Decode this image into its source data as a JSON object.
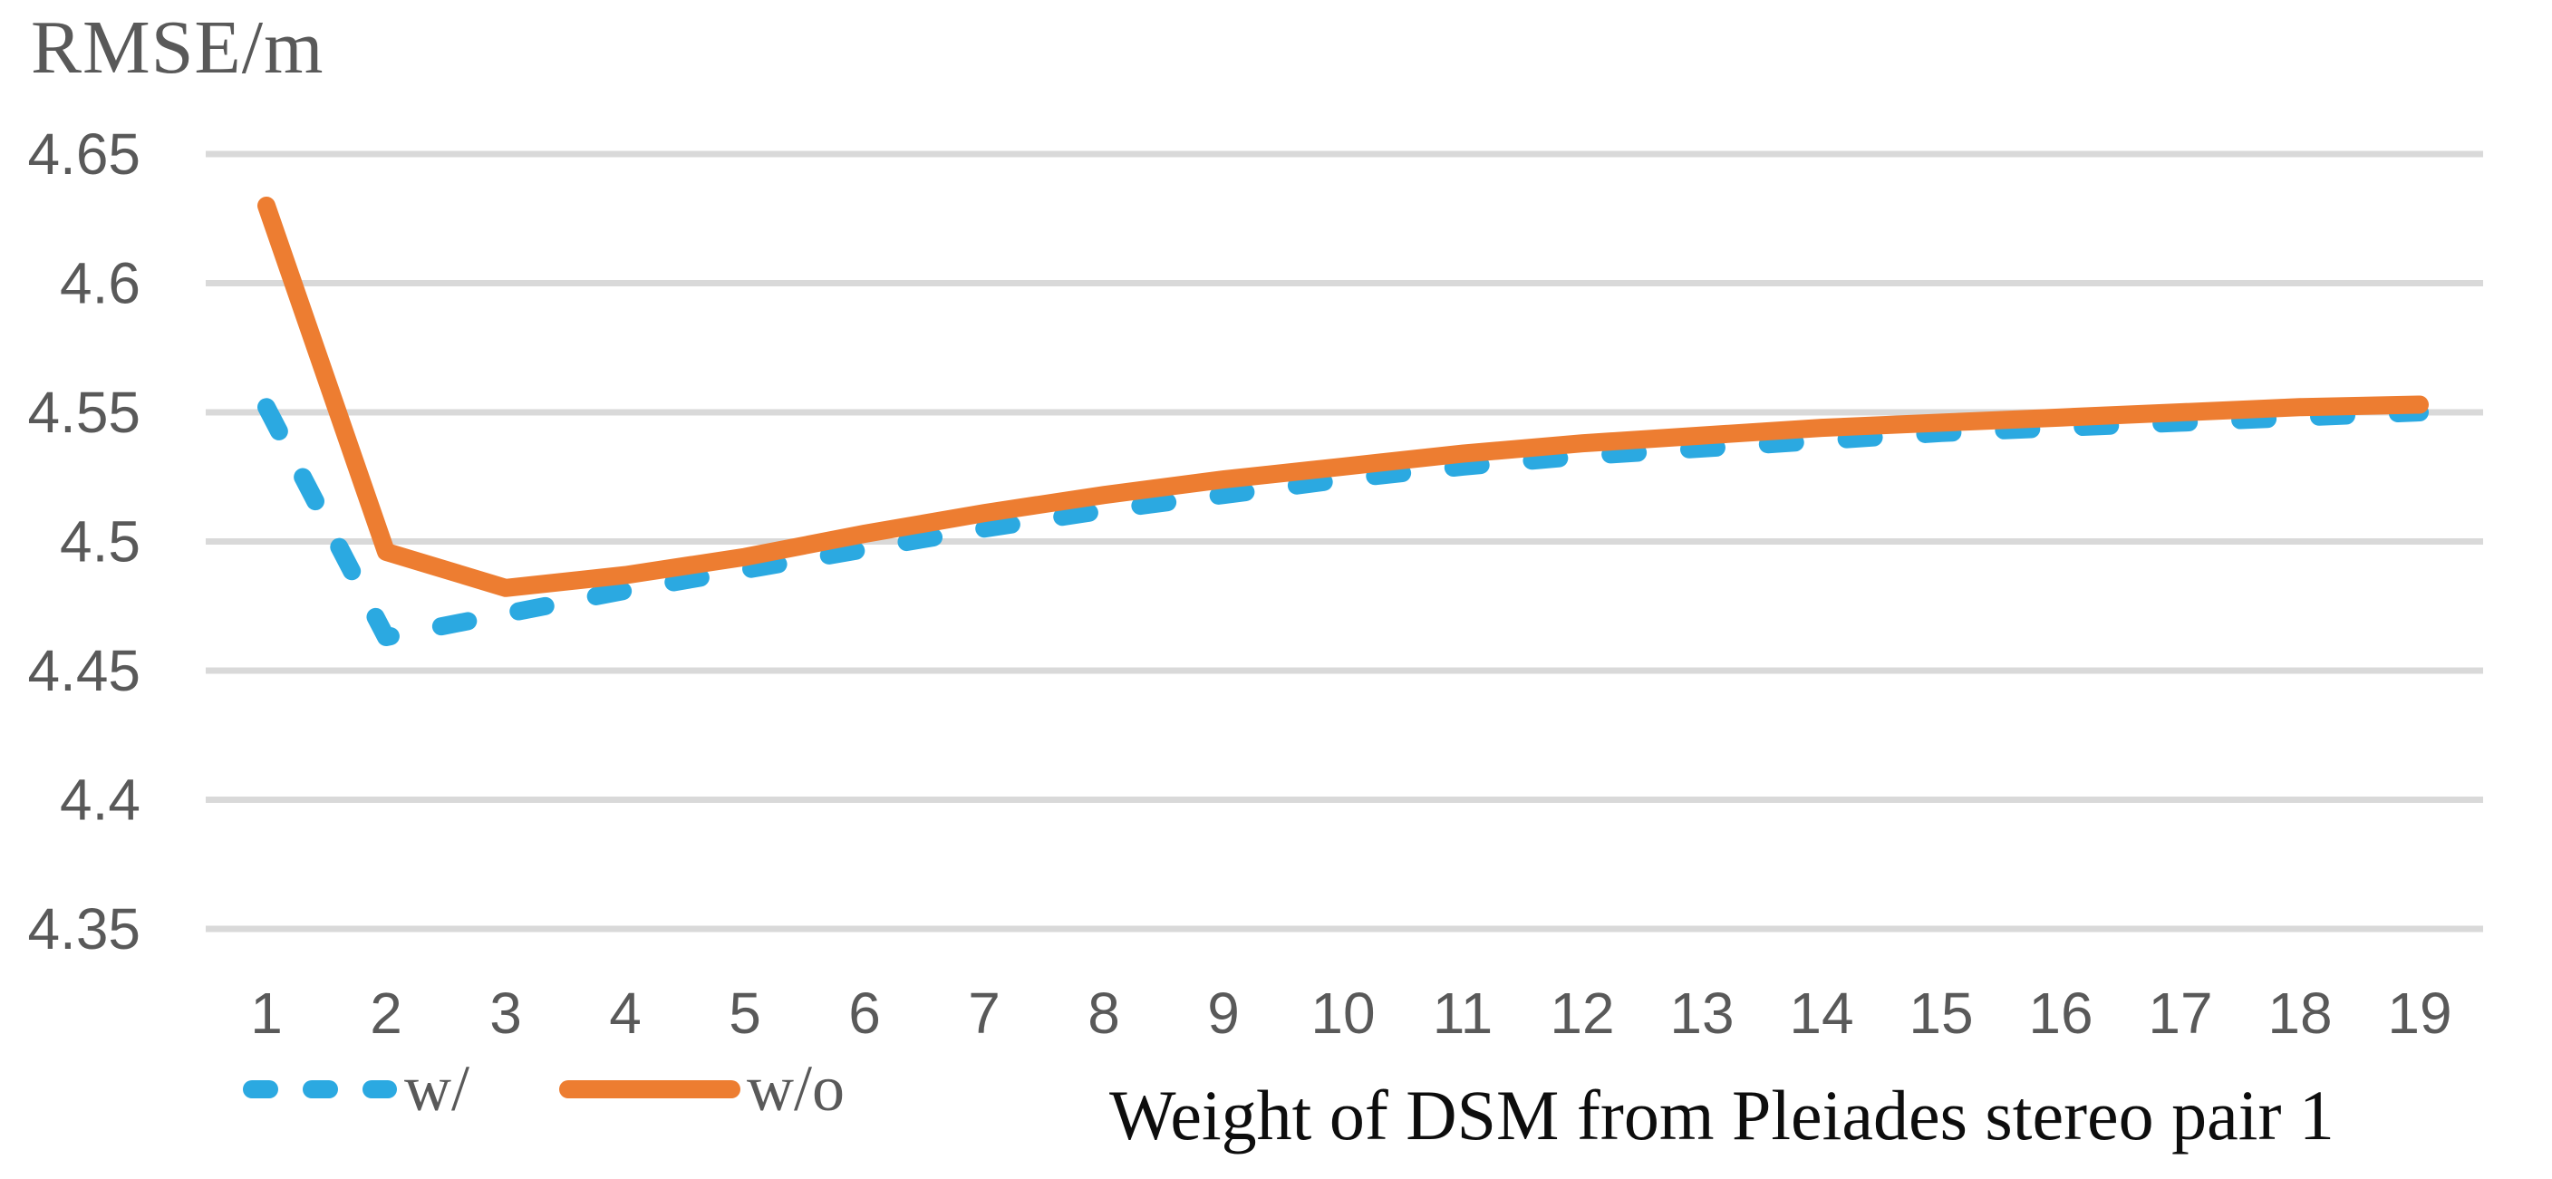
{
  "chart_data": {
    "type": "line",
    "title": "",
    "ylabel": "RMSE/m",
    "xlabel": "Weight of DSM from Pleiades stereo pair 1",
    "x": [
      1,
      2,
      3,
      4,
      5,
      6,
      7,
      8,
      9,
      10,
      11,
      12,
      13,
      14,
      15,
      16,
      17,
      18,
      19
    ],
    "x_tick_labels": [
      "1",
      "2",
      "3",
      "4",
      "5",
      "6",
      "7",
      "8",
      "9",
      "10",
      "11",
      "12",
      "13",
      "14",
      "15",
      "16",
      "17",
      "18",
      "19"
    ],
    "series": [
      {
        "name": "w/",
        "style": "dashed",
        "color": "#2BA9E1",
        "values": [
          4.552,
          4.463,
          4.472,
          4.481,
          4.489,
          4.497,
          4.505,
          4.512,
          4.518,
          4.524,
          4.529,
          4.533,
          4.536,
          4.539,
          4.542,
          4.544,
          4.546,
          4.548,
          4.55
        ]
      },
      {
        "name": "w/o",
        "style": "solid",
        "color": "#ED7D31",
        "values": [
          4.63,
          4.496,
          4.482,
          4.487,
          4.494,
          4.503,
          4.511,
          4.518,
          4.524,
          4.529,
          4.534,
          4.538,
          4.541,
          4.544,
          4.546,
          4.548,
          4.55,
          4.552,
          4.553
        ]
      }
    ],
    "y_ticks": [
      4.65,
      4.6,
      4.55,
      4.5,
      4.45,
      4.4,
      4.35
    ],
    "y_tick_labels": [
      "4.65",
      "4.6",
      "4.55",
      "4.5",
      "4.45",
      "4.4",
      "4.35"
    ],
    "ylim": [
      4.35,
      4.65
    ],
    "grid": "horizontal",
    "grid_color": "#D9D9D9",
    "tick_text_color": "#595959",
    "axis_title_color": "#0D0D0D",
    "legend_position": "bottom-left"
  }
}
